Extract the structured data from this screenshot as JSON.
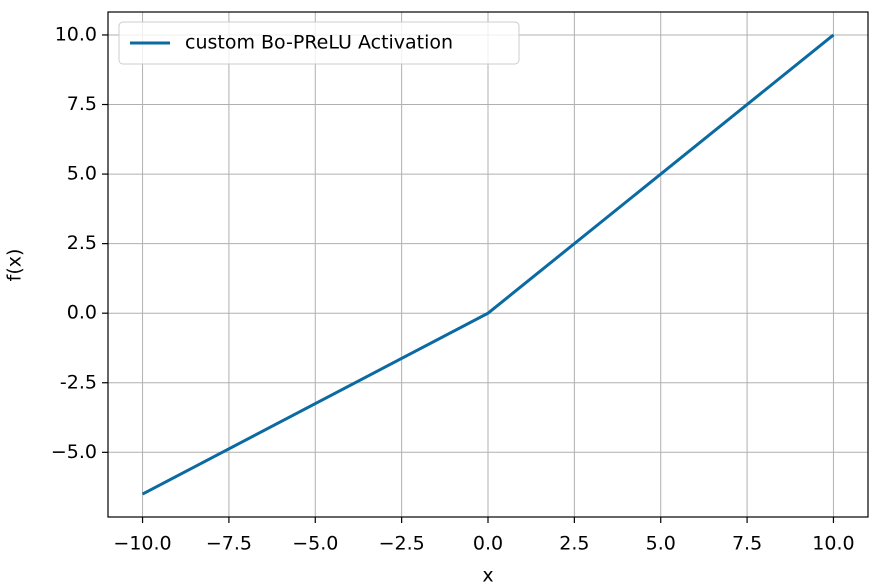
{
  "chart_data": {
    "type": "line",
    "xlabel": "x",
    "ylabel": "f(x)",
    "x": [
      -10,
      0,
      10
    ],
    "series": [
      {
        "name": "custom Bo-PReLU Activation",
        "color": "#0a6aa1",
        "values": [
          -6.5,
          0,
          10
        ]
      }
    ],
    "xlim": [
      -11,
      11
    ],
    "ylim": [
      -7.325,
      10.825
    ],
    "xticks": [
      {
        "value": -10,
        "label": "−10.0"
      },
      {
        "value": -7.5,
        "label": "−7.5"
      },
      {
        "value": -5,
        "label": "−5.0"
      },
      {
        "value": -2.5,
        "label": "−2.5"
      },
      {
        "value": 0,
        "label": "0.0"
      },
      2.5,
      {
        "value": 5,
        "label": "5.0"
      },
      7.5,
      {
        "value": 10,
        "label": "10.0"
      }
    ],
    "yticks": [
      {
        "value": -5,
        "label": "−5.0"
      },
      -2.5,
      {
        "value": 0,
        "label": "0.0"
      },
      2.5,
      {
        "value": 5,
        "label": "5.0"
      },
      7.5,
      {
        "value": 10,
        "label": "10.0"
      }
    ],
    "grid": true,
    "legend": "upper-left"
  }
}
